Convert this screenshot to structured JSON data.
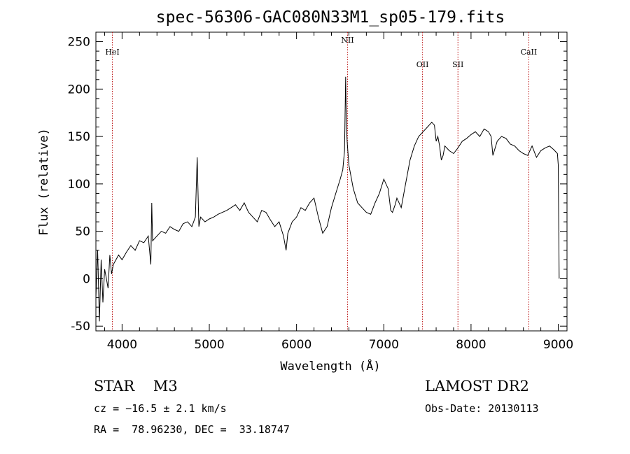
{
  "chart_data": {
    "type": "line",
    "title": "spec-56306-GAC080N33M1_sp05-179.fits",
    "xlabel": "Wavelength (Å)",
    "ylabel": "Flux (relative)",
    "xlim": [
      3700,
      9100
    ],
    "ylim": [
      -55,
      260
    ],
    "xticks": [
      4000,
      5000,
      6000,
      7000,
      8000,
      9000
    ],
    "yticks": [
      -50,
      0,
      50,
      100,
      150,
      200,
      250
    ],
    "grid": false,
    "series": [
      {
        "x": [
          3700,
          3720,
          3740,
          3760,
          3780,
          3800,
          3820,
          3840,
          3860,
          3880,
          3900,
          3930,
          3960,
          4000,
          4050,
          4100,
          4150,
          4200,
          4250,
          4300,
          4330,
          4340,
          4350,
          4400,
          4450,
          4500,
          4550,
          4600,
          4650,
          4700,
          4750,
          4800,
          4840,
          4861,
          4880,
          4900,
          4950,
          5000,
          5050,
          5100,
          5150,
          5200,
          5250,
          5300,
          5350,
          5400,
          5450,
          5500,
          5550,
          5600,
          5650,
          5700,
          5750,
          5800,
          5850,
          5880,
          5900,
          5950,
          6000,
          6050,
          6100,
          6150,
          6200,
          6250,
          6300,
          6350,
          6400,
          6450,
          6500,
          6530,
          6550,
          6563,
          6570,
          6580,
          6600,
          6620,
          6650,
          6700,
          6750,
          6800,
          6850,
          6900,
          6950,
          7000,
          7050,
          7080,
          7100,
          7130,
          7150,
          7200,
          7250,
          7300,
          7350,
          7400,
          7450,
          7500,
          7550,
          7580,
          7600,
          7620,
          7640,
          7660,
          7680,
          7700,
          7750,
          7800,
          7850,
          7900,
          7950,
          8000,
          8050,
          8100,
          8150,
          8200,
          8230,
          8250,
          8300,
          8350,
          8400,
          8450,
          8500,
          8550,
          8600,
          8650,
          8700,
          8750,
          8800,
          8850,
          8900,
          8950,
          8990,
          9000,
          9010
        ],
        "y": [
          -20,
          30,
          -45,
          20,
          -25,
          10,
          0,
          -10,
          25,
          5,
          15,
          20,
          25,
          20,
          28,
          35,
          30,
          40,
          38,
          45,
          15,
          80,
          40,
          45,
          50,
          48,
          55,
          52,
          50,
          58,
          60,
          55,
          65,
          128,
          55,
          65,
          60,
          63,
          65,
          68,
          70,
          72,
          75,
          78,
          72,
          80,
          70,
          65,
          60,
          72,
          70,
          62,
          55,
          60,
          45,
          30,
          48,
          60,
          65,
          75,
          72,
          80,
          85,
          65,
          48,
          55,
          75,
          90,
          105,
          115,
          135,
          213,
          165,
          145,
          120,
          110,
          95,
          80,
          75,
          70,
          68,
          80,
          90,
          105,
          95,
          72,
          70,
          78,
          85,
          75,
          100,
          125,
          140,
          150,
          155,
          160,
          165,
          162,
          145,
          150,
          140,
          125,
          130,
          140,
          135,
          132,
          138,
          145,
          148,
          152,
          155,
          150,
          158,
          155,
          150,
          130,
          145,
          150,
          148,
          142,
          140,
          135,
          132,
          130,
          140,
          128,
          135,
          138,
          140,
          136,
          132,
          120,
          0
        ],
        "line_names": [
          "HeI",
          "NII",
          "OII",
          "SII",
          "CaII"
        ],
        "line_x": [
          3889,
          6584,
          7444,
          7850,
          8662
        ]
      }
    ]
  },
  "footer": {
    "class_text": "STAR    M3",
    "cz_text": "cz = −16.5 ± 2.1 km/s",
    "radec_text": "RA =  78.96230, DEC =  33.18747",
    "survey_text": "LAMOST DR2",
    "obsdate_text": "Obs-Date: 20130113"
  }
}
